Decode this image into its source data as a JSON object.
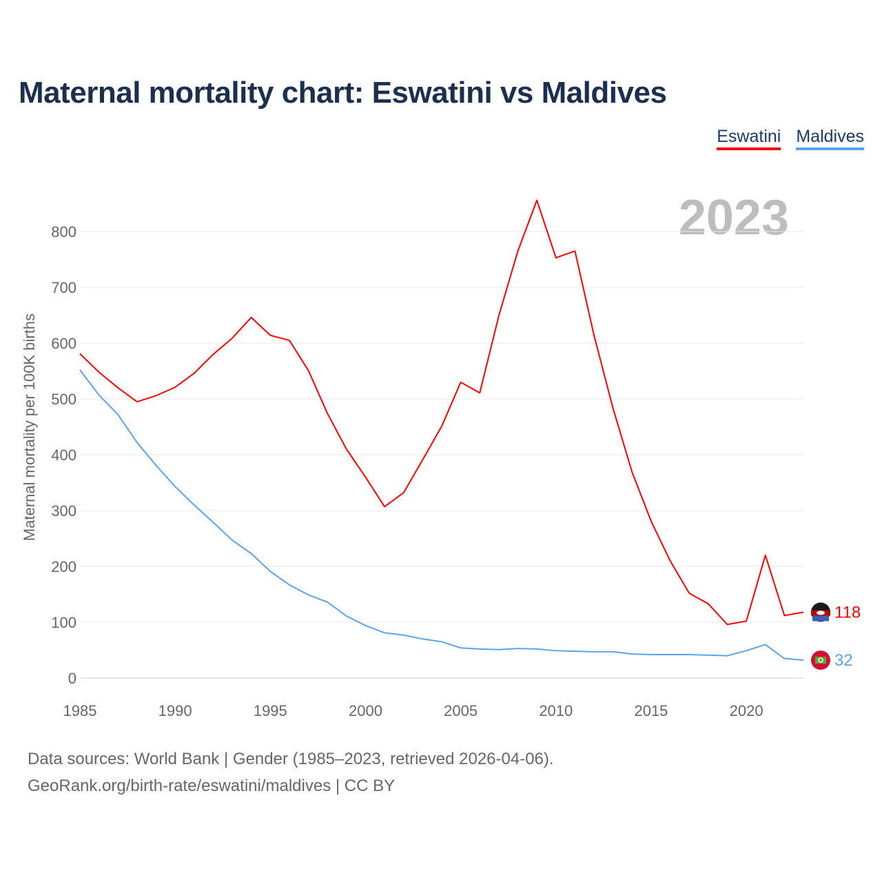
{
  "title": "Maternal mortality chart: Eswatini vs Maldives",
  "footer": {
    "line1": "Data sources: World Bank | Gender (1985–2023, retrieved 2026-04-06).",
    "line2": "GeoRank.org/birth-rate/eswatini/maldives | CC BY"
  },
  "chart_data": {
    "type": "line",
    "title": "Maternal mortality chart: Eswatini vs Maldives",
    "ylabel": "Maternal mortality per 100K births",
    "xlabel": "",
    "year_label": "2023",
    "xlim": [
      1985,
      2023
    ],
    "ylim": [
      0,
      800
    ],
    "xticks": [
      "1985",
      "1990",
      "1995",
      "2000",
      "2005",
      "2010",
      "2015",
      "2020"
    ],
    "yticks": [
      "0",
      "100",
      "200",
      "300",
      "400",
      "500",
      "600",
      "700",
      "800"
    ],
    "grid": true,
    "legend_position": "top-right",
    "x": [
      1985,
      1986,
      1987,
      1988,
      1989,
      1990,
      1991,
      1992,
      1993,
      1994,
      1995,
      1996,
      1997,
      1998,
      1999,
      2000,
      2001,
      2002,
      2003,
      2004,
      2005,
      2006,
      2007,
      2008,
      2009,
      2010,
      2011,
      2012,
      2013,
      2014,
      2015,
      2016,
      2017,
      2018,
      2019,
      2020,
      2021,
      2022,
      2023
    ],
    "series": [
      {
        "name": "Eswatini",
        "color": "#ff0000",
        "end_label": "118",
        "values": [
          581,
          548,
          520,
          495,
          506,
          521,
          546,
          580,
          609,
          646,
          614,
          605,
          551,
          474,
          410,
          360,
          307,
          332,
          391,
          451,
          530,
          511,
          649,
          765,
          856,
          753,
          765,
          614,
          483,
          369,
          281,
          210,
          152,
          133,
          96,
          102,
          220,
          112,
          118
        ]
      },
      {
        "name": "Maldives",
        "color": "#5ba3ee",
        "end_label": "32",
        "values": [
          552,
          507,
          472,
          422,
          381,
          343,
          310,
          279,
          247,
          223,
          191,
          167,
          149,
          136,
          111,
          94,
          81,
          77,
          70,
          65,
          54,
          52,
          51,
          53,
          52,
          49,
          48,
          47,
          47,
          43,
          42,
          42,
          42,
          41,
          40,
          49,
          60,
          35,
          32
        ]
      }
    ]
  }
}
